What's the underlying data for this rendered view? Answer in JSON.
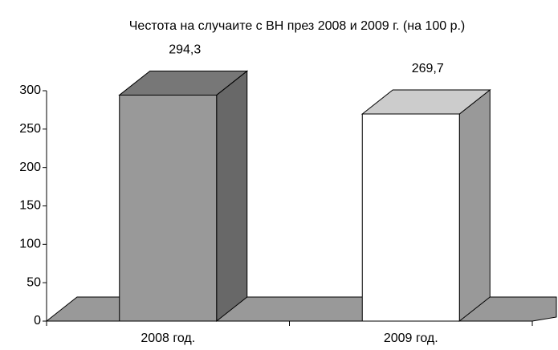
{
  "chart_data": {
    "type": "bar3d",
    "title": "Честота на случаите с ВН през 2008 и 2009 г. (на 100 р.)",
    "categories": [
      "2008 год.",
      "2009 год."
    ],
    "values": [
      294.3,
      269.7
    ],
    "value_labels": [
      "294,3",
      "269,7"
    ],
    "colors": [
      "#999999",
      "#ffffff"
    ],
    "ylim": [
      0,
      300
    ],
    "yticks": [
      0,
      50,
      100,
      150,
      200,
      250,
      300
    ]
  }
}
